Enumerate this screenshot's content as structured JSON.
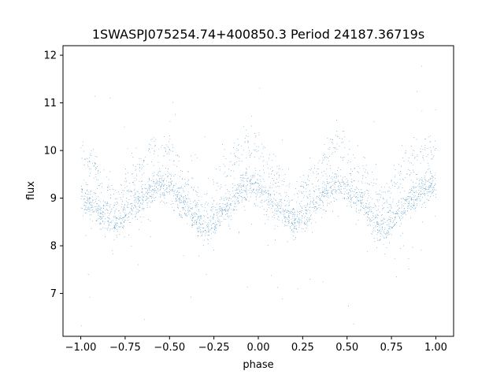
{
  "chart_data": {
    "type": "scatter",
    "title": "1SWASPJ075254.74+400850.3 Period 24187.36719s",
    "xlabel": "phase",
    "ylabel": "flux",
    "xlim": [
      -1.1,
      1.1
    ],
    "ylim": [
      6.1,
      12.2
    ],
    "xticks": [
      -1.0,
      -0.75,
      -0.5,
      -0.25,
      0.0,
      0.25,
      0.5,
      0.75,
      1.0
    ],
    "xtick_labels": [
      "−1.00",
      "−0.75",
      "−0.50",
      "−0.25",
      "0.00",
      "0.25",
      "0.50",
      "0.75",
      "1.00"
    ],
    "yticks": [
      7,
      8,
      9,
      10,
      11,
      12
    ],
    "ytick_labels": [
      "7",
      "8",
      "9",
      "10",
      "11",
      "12"
    ],
    "grid": false,
    "legend": "none",
    "marker_color": "#1f77b4",
    "series": [
      {
        "main_band": {
          "phase": [
            -1.0,
            -0.9,
            -0.8,
            -0.7,
            -0.6,
            -0.55,
            -0.5,
            -0.4,
            -0.3,
            -0.2,
            -0.1,
            -0.05,
            0.0,
            0.1,
            0.2,
            0.3,
            0.4,
            0.45,
            0.5,
            0.6,
            0.7,
            0.8,
            0.9,
            1.0
          ],
          "flux": [
            9.05,
            8.75,
            8.45,
            8.85,
            9.2,
            9.3,
            9.2,
            8.8,
            8.3,
            8.75,
            9.15,
            9.3,
            9.2,
            8.85,
            8.45,
            8.85,
            9.2,
            9.3,
            9.2,
            8.8,
            8.3,
            8.75,
            9.15,
            9.3
          ]
        },
        "upper_band": {
          "phase": [
            -1.0,
            -0.9,
            -0.8,
            -0.7,
            -0.6,
            -0.55,
            -0.5,
            -0.4,
            -0.3,
            -0.2,
            -0.1,
            -0.05,
            0.0,
            0.1,
            0.2,
            0.3,
            0.4,
            0.45,
            0.5,
            0.6,
            0.7,
            0.8,
            0.9,
            1.0
          ],
          "flux": [
            10.0,
            9.5,
            8.9,
            9.5,
            10.0,
            10.15,
            10.0,
            9.4,
            8.8,
            9.45,
            10.0,
            10.15,
            10.05,
            9.5,
            8.9,
            9.5,
            10.0,
            10.15,
            10.0,
            9.4,
            8.8,
            9.45,
            10.0,
            10.1
          ]
        },
        "n_points": 24000,
        "outlier_range": [
          6.3,
          11.8
        ]
      }
    ]
  }
}
